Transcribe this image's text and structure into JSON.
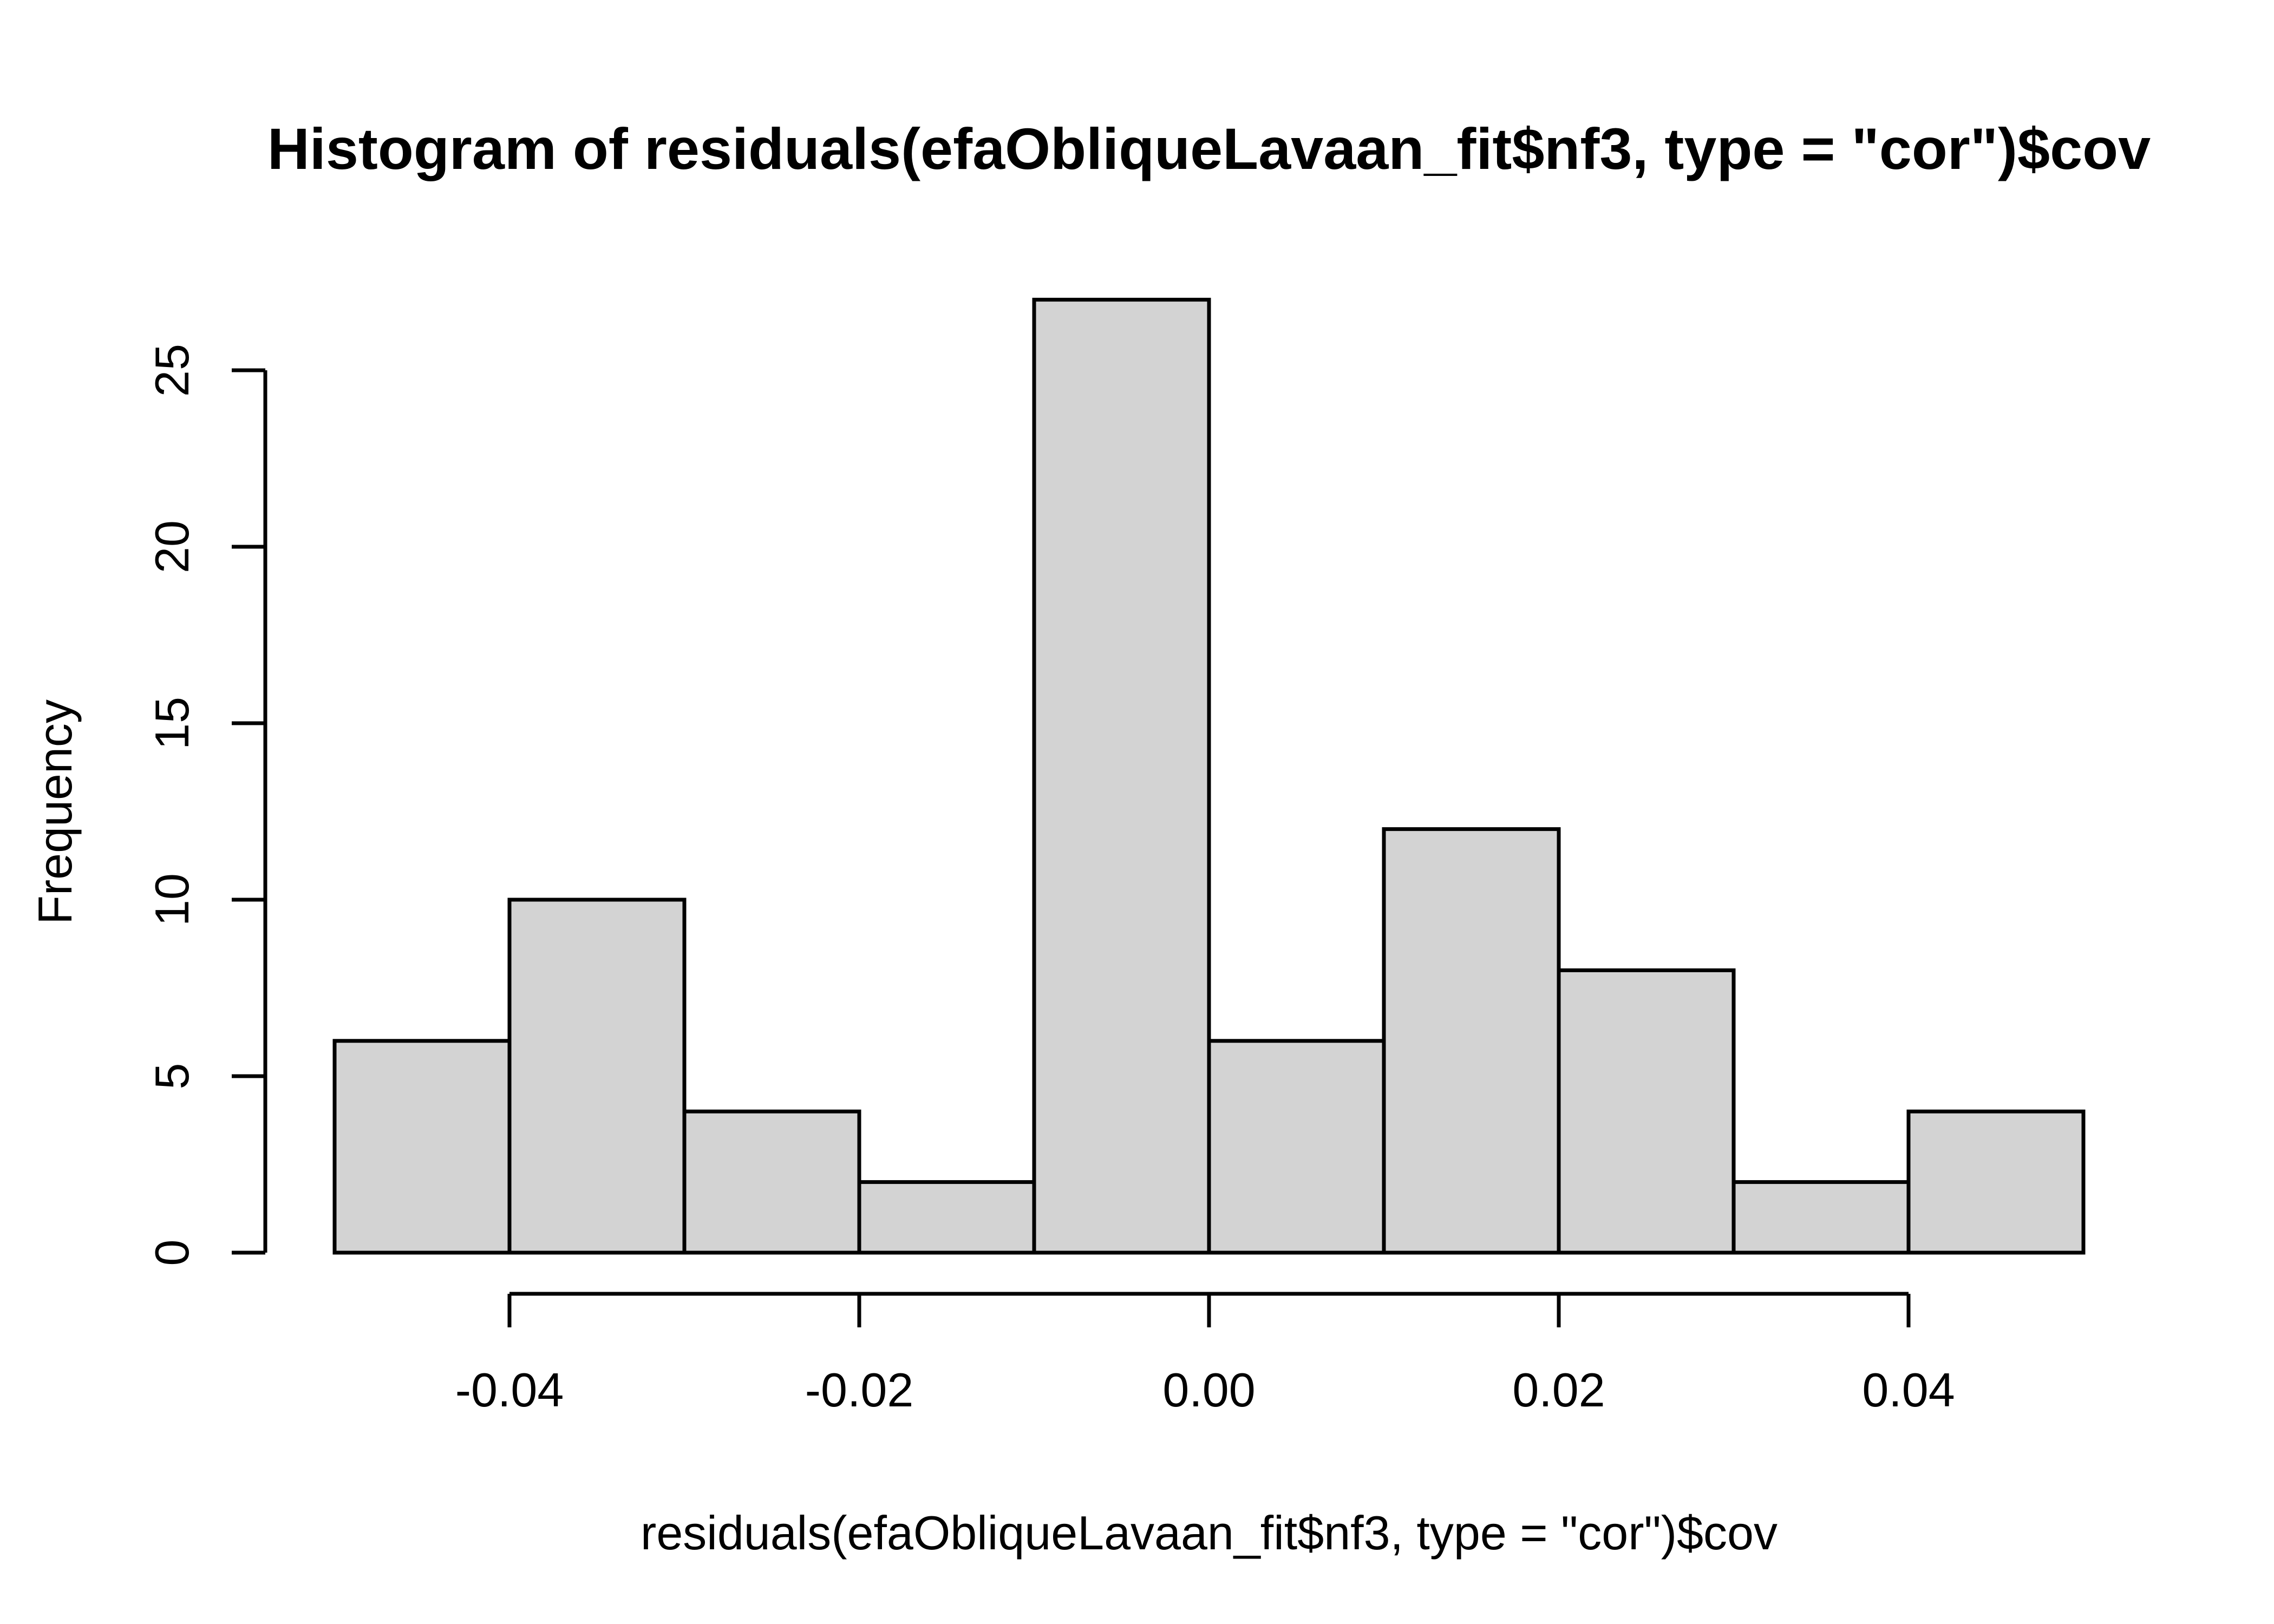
{
  "chart_data": {
    "type": "bar",
    "subtype": "histogram",
    "title": "Histogram of residuals(efaObliqueLavaan_fit$nf3, type = \"cor\")$cov",
    "xlabel": "residuals(efaObliqueLavaan_fit$nf3, type = \"cor\")$cov",
    "ylabel": "Frequency",
    "bin_width": 0.01,
    "bins": [
      {
        "from": -0.05,
        "to": -0.04,
        "count": 6
      },
      {
        "from": -0.04,
        "to": -0.03,
        "count": 10
      },
      {
        "from": -0.03,
        "to": -0.02,
        "count": 4
      },
      {
        "from": -0.02,
        "to": -0.01,
        "count": 2
      },
      {
        "from": -0.01,
        "to": 0.0,
        "count": 27
      },
      {
        "from": 0.0,
        "to": 0.01,
        "count": 6
      },
      {
        "from": 0.01,
        "to": 0.02,
        "count": 12
      },
      {
        "from": 0.02,
        "to": 0.03,
        "count": 8
      },
      {
        "from": 0.03,
        "to": 0.04,
        "count": 2
      },
      {
        "from": 0.04,
        "to": 0.05,
        "count": 4
      }
    ],
    "xlim": [
      -0.05,
      0.05
    ],
    "ylim": [
      0,
      27
    ],
    "x_ticks": [
      {
        "value": -0.04,
        "label": "-0.04"
      },
      {
        "value": -0.02,
        "label": "-0.02"
      },
      {
        "value": 0.0,
        "label": "0.00"
      },
      {
        "value": 0.02,
        "label": "0.02"
      },
      {
        "value": 0.04,
        "label": "0.04"
      }
    ],
    "y_ticks": [
      {
        "value": 0,
        "label": "0"
      },
      {
        "value": 5,
        "label": "5"
      },
      {
        "value": 10,
        "label": "10"
      },
      {
        "value": 15,
        "label": "15"
      },
      {
        "value": 20,
        "label": "20"
      },
      {
        "value": 25,
        "label": "25"
      }
    ],
    "grid": false,
    "legend": null,
    "colors": {
      "bar_fill": "#d3d3d3",
      "bar_stroke": "#000000",
      "axis": "#000000",
      "text": "#000000",
      "background": "#ffffff"
    }
  }
}
